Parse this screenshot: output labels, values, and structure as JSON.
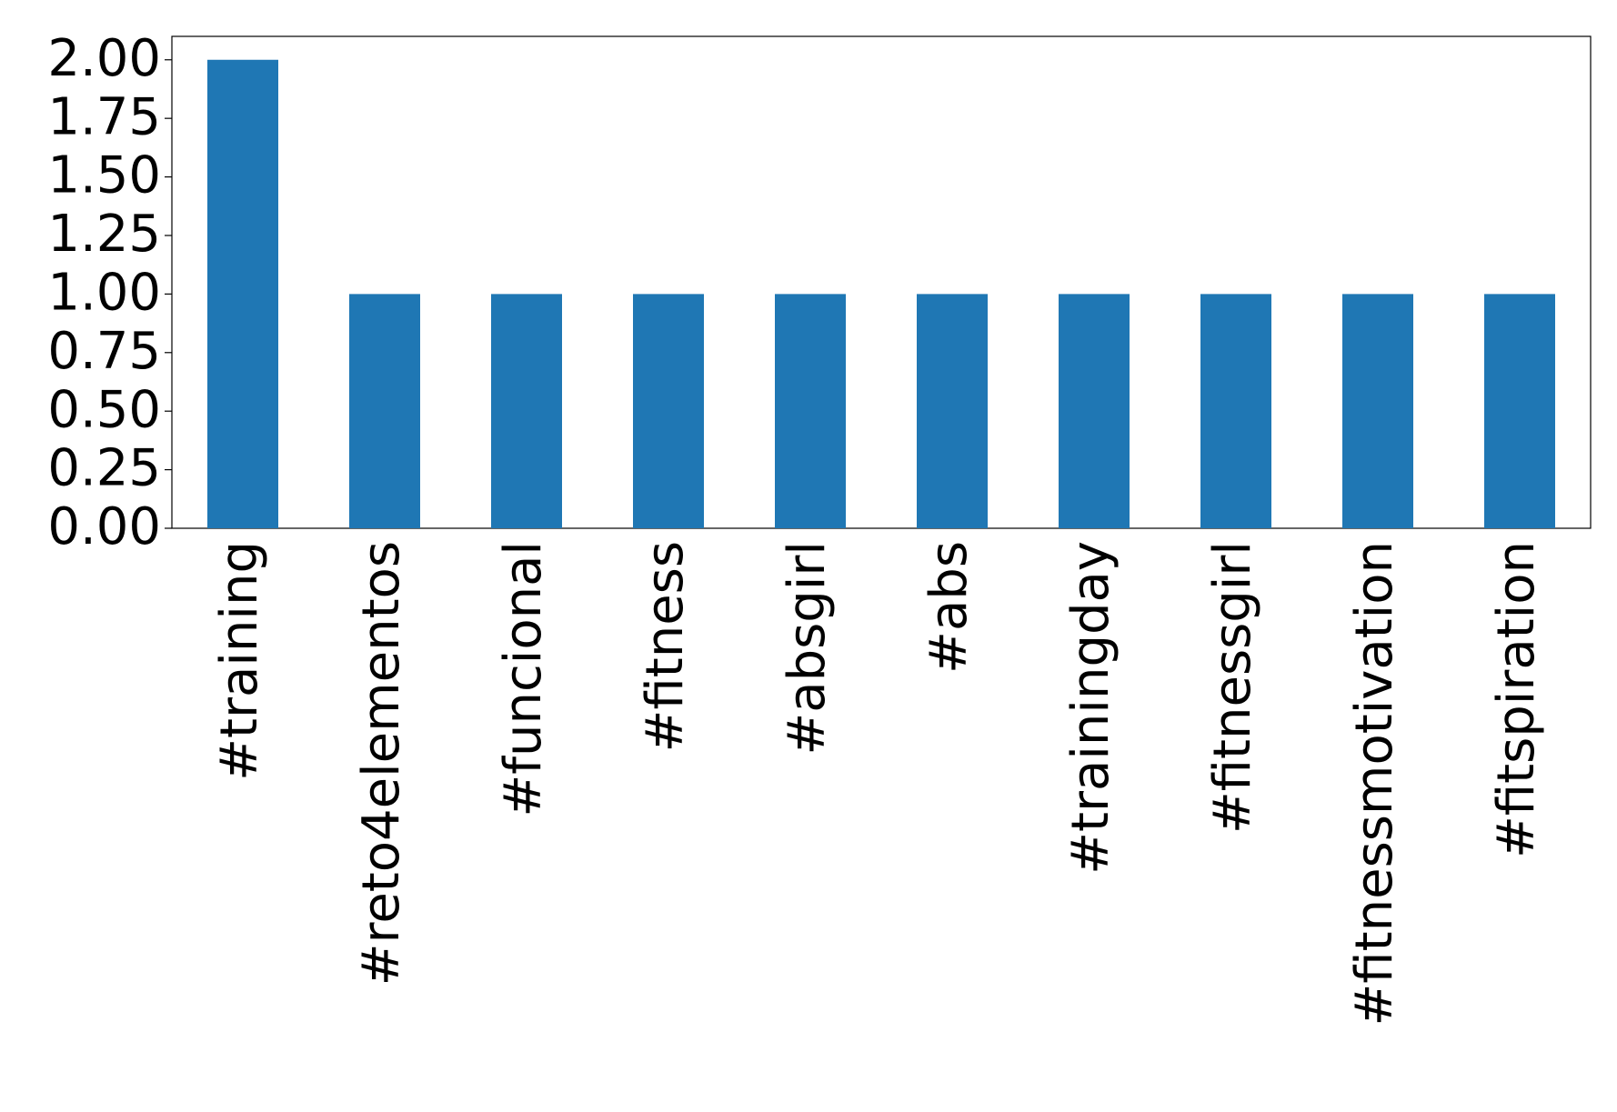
{
  "chart_data": {
    "type": "bar",
    "categories": [
      "#training",
      "#reto4elementos",
      "#funcional",
      "#fitness",
      "#absgirl",
      "#abs",
      "#trainingday",
      "#fitnessgirl",
      "#fitnessmotivation",
      "#fitspiration"
    ],
    "values": [
      2,
      1,
      1,
      1,
      1,
      1,
      1,
      1,
      1,
      1
    ],
    "color": "#1f77b4",
    "ylim": [
      0,
      2.1
    ],
    "yticks": [
      {
        "value": 0,
        "label": "0.00"
      },
      {
        "value": 0.25,
        "label": "0.25"
      },
      {
        "value": 0.5,
        "label": "0.50"
      },
      {
        "value": 0.75,
        "label": "0.75"
      },
      {
        "value": 1,
        "label": "1.00"
      },
      {
        "value": 1.25,
        "label": "1.25"
      },
      {
        "value": 1.5,
        "label": "1.50"
      },
      {
        "value": 1.75,
        "label": "1.75"
      },
      {
        "value": 2,
        "label": "2.00"
      }
    ],
    "grid": false
  }
}
